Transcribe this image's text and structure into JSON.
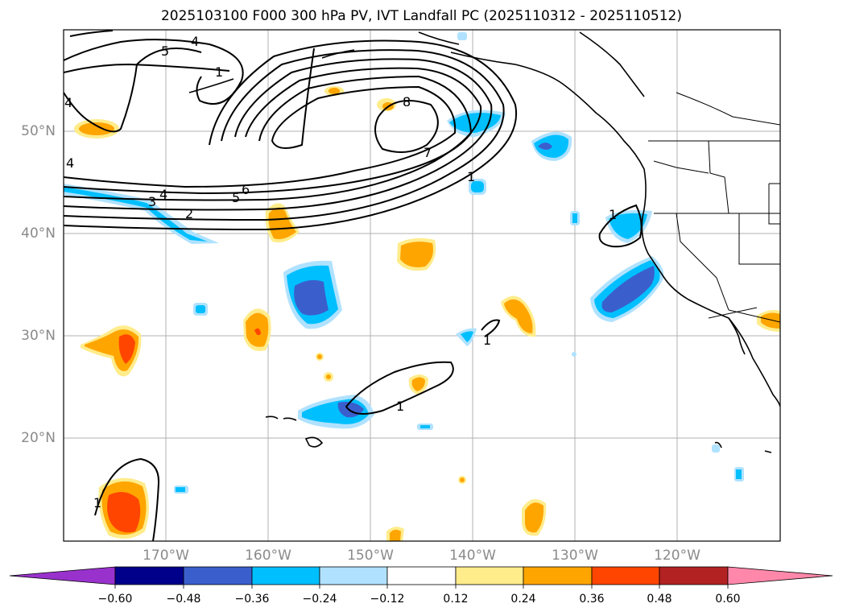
{
  "title": "2025103100 F000 300 hPa PV, IVT Landfall PC (2025110312 - 2025110512)",
  "map": {
    "projection": "lat-lon",
    "grid": true,
    "lon_labels": [
      "170°W",
      "160°W",
      "150°W",
      "140°W",
      "130°W",
      "120°W"
    ],
    "lat_labels": [
      "20°N",
      "30°N",
      "40°N",
      "50°N"
    ],
    "contour_labels": [
      "5",
      "4",
      "4",
      "1",
      "8",
      "7",
      "4",
      "6",
      "5",
      "4",
      "3",
      "2",
      "1",
      "1",
      "1",
      "1",
      "1"
    ]
  },
  "colorbar": {
    "ticks": [
      "−0.60",
      "−0.48",
      "−0.36",
      "−0.24",
      "−0.12",
      "0.12",
      "0.24",
      "0.36",
      "0.48",
      "0.60"
    ],
    "colors": [
      "#9932CC",
      "#00008B",
      "#3A5FCD",
      "#00BFFF",
      "#B0E2FF",
      "#FFFFFF",
      "#FFEC8B",
      "#FFA500",
      "#FF4500",
      "#B22222",
      "#FF88AA"
    ]
  },
  "colors": {
    "land_outline": "#000000",
    "grid": "#b0b0b0",
    "contour": "#000000"
  }
}
